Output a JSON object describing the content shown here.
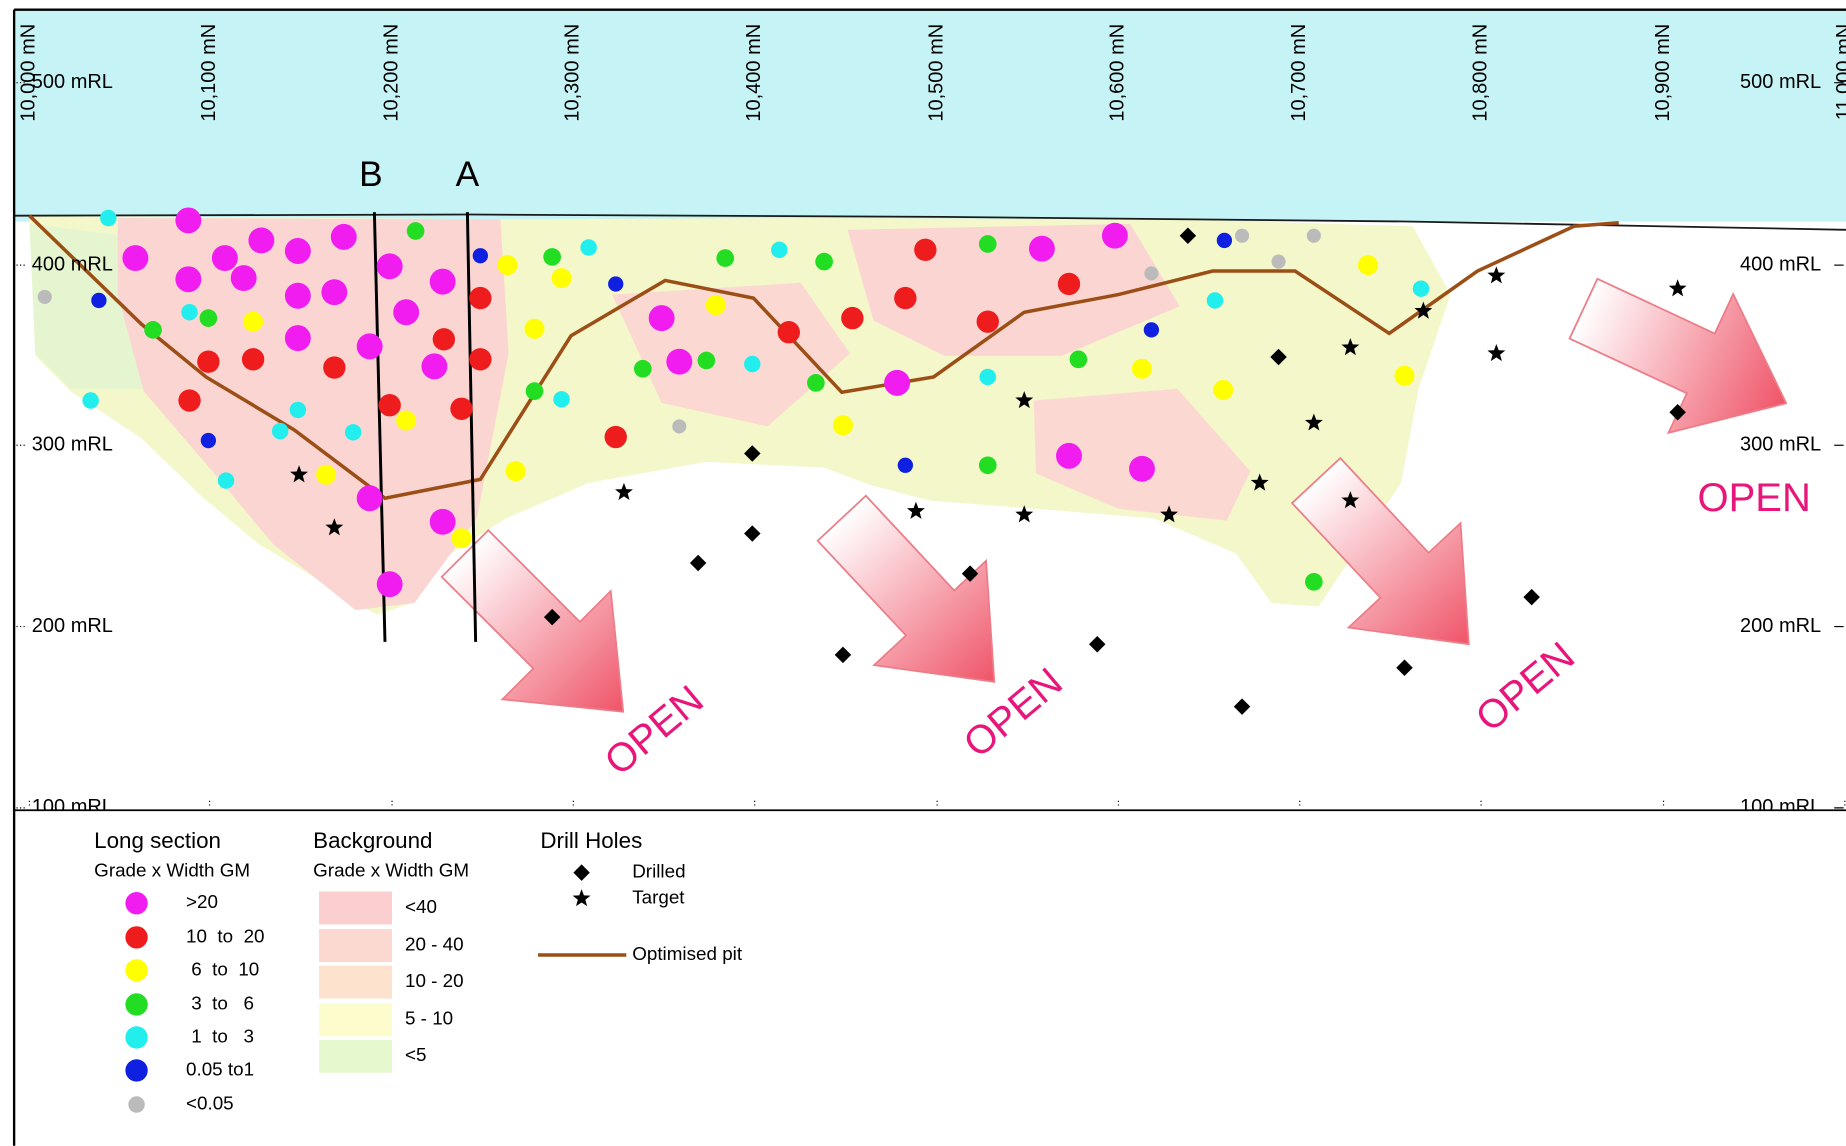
{
  "section": {
    "northings": [
      "10,000 mN",
      "10,100 mN",
      "10,200 mN",
      "10,300 mN",
      "10,400 mN",
      "10,500 mN",
      "10,600 mN",
      "10,700 mN",
      "10,800 mN",
      "10,900 mN",
      "11,000 mN"
    ],
    "elevations_left": [
      "500 mRL",
      "400 mRL",
      "300 mRL",
      "200 mRL",
      "100 mRL"
    ],
    "elevations_right": [
      "500 mRL",
      "400 mRL",
      "300 mRL",
      "200 mRL",
      "100 mRL"
    ],
    "line_labels": [
      "B",
      "A"
    ],
    "open_labels": [
      "OPEN",
      "OPEN",
      "OPEN",
      "OPEN"
    ]
  },
  "legend": {
    "long_section": {
      "title": "Long section",
      "subtitle": "Grade x Width GM",
      "items": [
        ">20",
        "10  to  20",
        " 6  to  10",
        " 3  to   6",
        " 1  to   3",
        "0.05 to1",
        "<0.05"
      ]
    },
    "background": {
      "title": "Background",
      "subtitle": "Grade x Width GM",
      "items": [
        "<40",
        "20 - 40",
        "10 - 20",
        "5 - 10",
        "<5"
      ]
    },
    "drill_holes": {
      "title": "Drill Holes",
      "items": [
        "Drilled",
        "Target"
      ],
      "pit": "Optimised pit"
    }
  }
}
